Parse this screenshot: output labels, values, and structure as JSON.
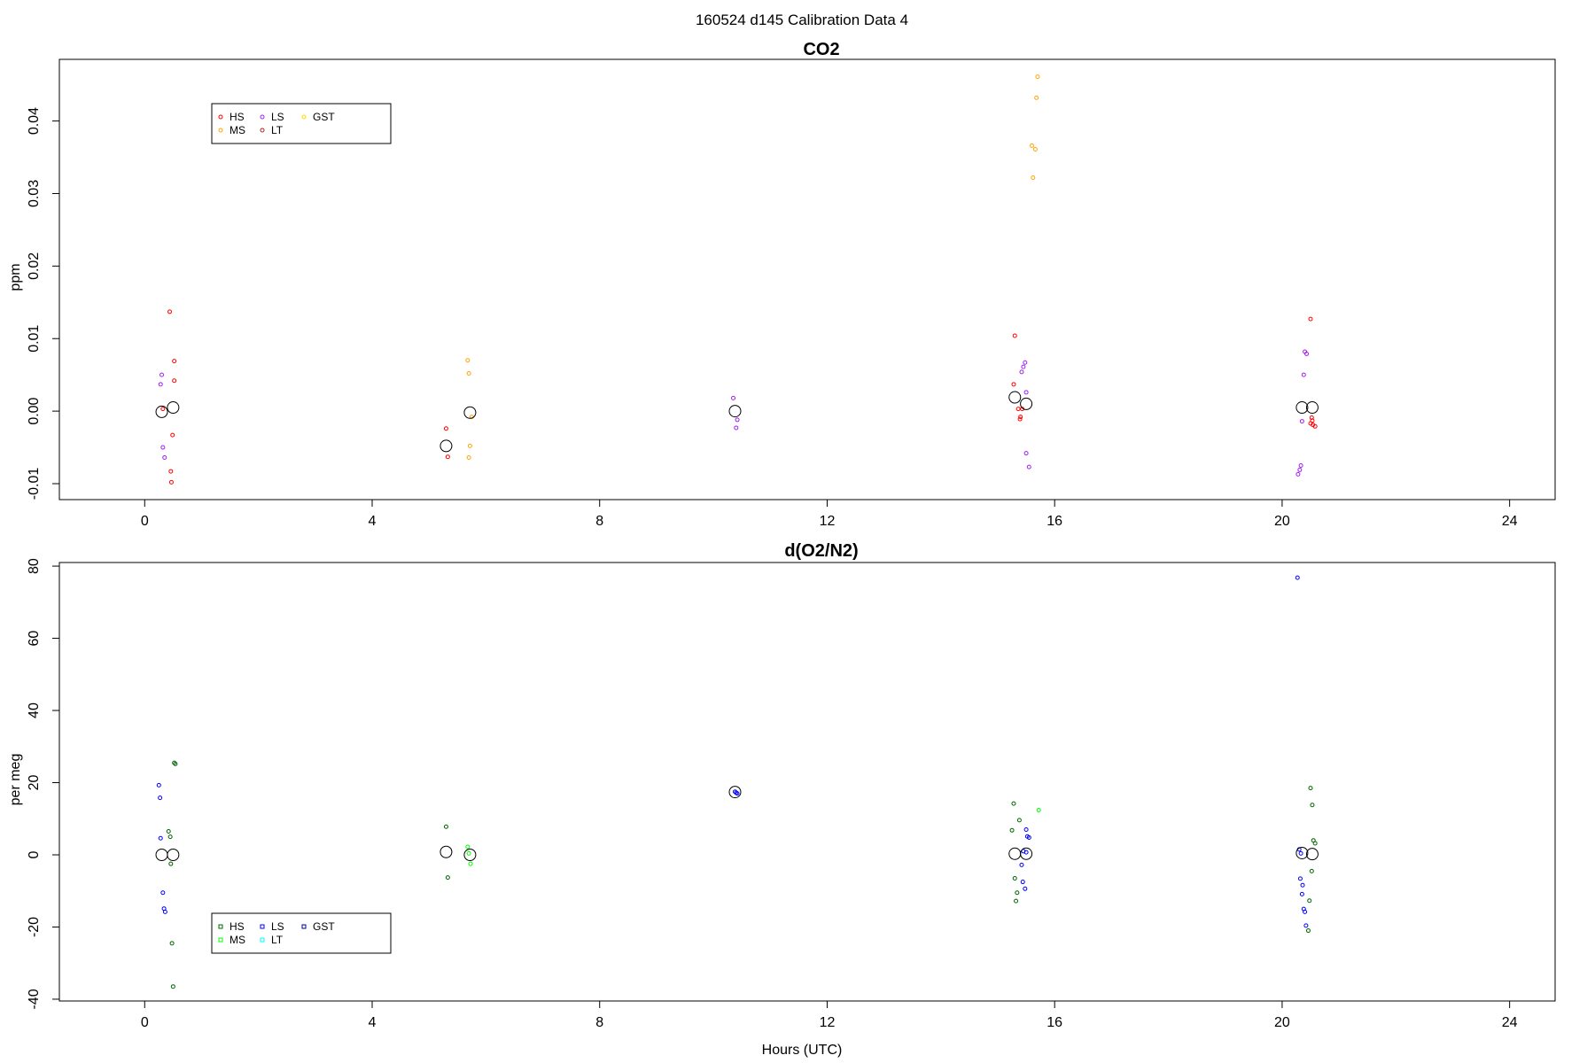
{
  "suptitle": "160524   d145   Calibration Data 4",
  "chart_data": [
    {
      "type": "scatter",
      "title": "CO2",
      "xlabel": "",
      "ylabel": "ppm",
      "xlim": [
        -1.5,
        24.8
      ],
      "ylim": [
        -0.0122,
        0.0485
      ],
      "xticks": [
        0,
        4,
        8,
        12,
        16,
        20,
        24
      ],
      "xtick_labels": [
        "0",
        "4",
        "8",
        "12",
        "16",
        "20",
        "24"
      ],
      "yticks": [
        -0.01,
        0.0,
        0.01,
        0.02,
        0.03,
        0.04
      ],
      "ytick_labels": [
        "-0.01",
        "0.00",
        "0.01",
        "0.02",
        "0.03",
        "0.04"
      ],
      "grid": false,
      "legend_position": "top-left",
      "legend": [
        {
          "label": "HS",
          "color": "#ff0000"
        },
        {
          "label": "LS",
          "color": "#a020f0"
        },
        {
          "label": "GST",
          "color": "#ffd700"
        },
        {
          "label": "MS",
          "color": "#ffa500"
        },
        {
          "label": "LT",
          "color": "#b22222"
        }
      ],
      "series": [
        {
          "name": "HS",
          "color": "#ff0000",
          "points": [
            [
              0.44,
              0.0137
            ],
            [
              0.52,
              0.0069
            ],
            [
              0.52,
              0.0042
            ],
            [
              0.49,
              -0.0033
            ],
            [
              0.46,
              -0.0083
            ],
            [
              0.47,
              -0.0098
            ],
            [
              0.32,
              0.0003
            ],
            [
              5.3,
              -0.0024
            ],
            [
              5.33,
              -0.0063
            ],
            [
              15.3,
              0.0104
            ],
            [
              15.28,
              0.0037
            ],
            [
              15.36,
              0.0003
            ],
            [
              15.4,
              -0.0008
            ],
            [
              15.39,
              -0.0011
            ],
            [
              15.43,
              0.0003
            ],
            [
              20.5,
              0.0127
            ],
            [
              20.52,
              -0.0009
            ],
            [
              20.53,
              -0.0013
            ],
            [
              20.5,
              -0.0017
            ],
            [
              20.54,
              -0.0019
            ],
            [
              20.58,
              -0.0021
            ]
          ]
        },
        {
          "name": "LS",
          "color": "#a020f0",
          "points": [
            [
              0.3,
              0.005
            ],
            [
              0.28,
              0.0037
            ],
            [
              0.32,
              -0.005
            ],
            [
              0.35,
              -0.0064
            ],
            [
              10.35,
              0.0018
            ],
            [
              10.42,
              -0.0012
            ],
            [
              10.4,
              -0.0023
            ],
            [
              15.48,
              0.0067
            ],
            [
              15.45,
              0.0061
            ],
            [
              15.42,
              0.0054
            ],
            [
              15.5,
              0.0026
            ],
            [
              15.5,
              -0.0058
            ],
            [
              15.55,
              -0.0077
            ],
            [
              20.4,
              0.0082
            ],
            [
              20.43,
              0.0079
            ],
            [
              20.38,
              0.005
            ],
            [
              20.35,
              -0.0014
            ],
            [
              20.33,
              -0.0075
            ],
            [
              20.31,
              -0.0081
            ],
            [
              20.28,
              -0.0087
            ]
          ]
        },
        {
          "name": "MS",
          "color": "#ffa500",
          "points": [
            [
              5.68,
              0.007
            ],
            [
              5.7,
              0.0052
            ],
            [
              5.75,
              -0.0008
            ],
            [
              5.72,
              -0.0048
            ],
            [
              5.7,
              -0.0064
            ],
            [
              15.7,
              0.0461
            ],
            [
              15.68,
              0.0432
            ],
            [
              15.6,
              0.0366
            ],
            [
              15.66,
              0.0361
            ],
            [
              15.62,
              0.0322
            ]
          ]
        },
        {
          "name": "calibration mean",
          "color": "#000000",
          "large": true,
          "points": [
            [
              0.3,
              -0.0001
            ],
            [
              0.5,
              0.0005
            ],
            [
              5.3,
              -0.0048
            ],
            [
              5.72,
              -0.0002
            ],
            [
              10.38,
              0.0
            ],
            [
              15.3,
              0.0019
            ],
            [
              15.5,
              0.001
            ],
            [
              20.35,
              0.0005
            ],
            [
              20.53,
              0.0005
            ]
          ]
        }
      ]
    },
    {
      "type": "scatter",
      "title": "d(O2/N2)",
      "xlabel": "Hours (UTC)",
      "ylabel": "per meg",
      "xlim": [
        -1.5,
        24.8
      ],
      "ylim": [
        -40.5,
        81
      ],
      "xticks": [
        0,
        4,
        8,
        12,
        16,
        20,
        24
      ],
      "xtick_labels": [
        "0",
        "4",
        "8",
        "12",
        "16",
        "20",
        "24"
      ],
      "yticks": [
        -40,
        -20,
        0,
        20,
        40,
        60,
        80
      ],
      "ytick_labels": [
        "-40",
        "-20",
        "0",
        "20",
        "40",
        "60",
        "80"
      ],
      "grid": false,
      "legend_position": "bottom-left",
      "legend": [
        {
          "label": "HS",
          "color": "#006400"
        },
        {
          "label": "LS",
          "color": "#0000ff"
        },
        {
          "label": "GST",
          "color": "#00008b"
        },
        {
          "label": "MS",
          "color": "#00ff00"
        },
        {
          "label": "LT",
          "color": "#00ffff"
        }
      ],
      "series": [
        {
          "name": "HS",
          "color": "#006400",
          "points": [
            [
              0.52,
              25.5
            ],
            [
              0.54,
              25.2
            ],
            [
              0.42,
              6.5
            ],
            [
              0.45,
              5.0
            ],
            [
              0.46,
              -2.5
            ],
            [
              0.48,
              -24.5
            ],
            [
              0.5,
              -36.5
            ],
            [
              5.3,
              7.8
            ],
            [
              5.33,
              -6.3
            ],
            [
              15.28,
              14.2
            ],
            [
              15.38,
              9.6
            ],
            [
              15.25,
              6.8
            ],
            [
              15.3,
              -6.5
            ],
            [
              15.34,
              -10.5
            ],
            [
              15.32,
              -12.8
            ],
            [
              20.5,
              18.5
            ],
            [
              20.53,
              13.8
            ],
            [
              20.55,
              4.0
            ],
            [
              20.58,
              3.2
            ],
            [
              20.52,
              -4.5
            ],
            [
              20.48,
              -12.7
            ],
            [
              20.46,
              -21.0
            ]
          ]
        },
        {
          "name": "LS",
          "color": "#0000ff",
          "points": [
            [
              0.25,
              19.3
            ],
            [
              0.27,
              15.8
            ],
            [
              0.28,
              4.6
            ],
            [
              0.32,
              -10.5
            ],
            [
              0.34,
              -14.9
            ],
            [
              0.36,
              -15.8
            ],
            [
              10.38,
              17.5
            ],
            [
              10.4,
              17.2
            ],
            [
              10.42,
              17.0
            ],
            [
              15.5,
              7.0
            ],
            [
              15.52,
              5.1
            ],
            [
              15.55,
              4.8
            ],
            [
              15.45,
              1.0
            ],
            [
              15.5,
              0.7
            ],
            [
              15.42,
              -2.8
            ],
            [
              15.44,
              -7.5
            ],
            [
              15.48,
              -9.4
            ],
            [
              20.27,
              76.8
            ],
            [
              20.3,
              1.5
            ],
            [
              20.33,
              0.4
            ],
            [
              20.32,
              -6.6
            ],
            [
              20.36,
              -8.4
            ],
            [
              20.35,
              -10.9
            ],
            [
              20.38,
              -15.0
            ],
            [
              20.4,
              -15.8
            ],
            [
              20.42,
              -19.6
            ]
          ]
        },
        {
          "name": "MS",
          "color": "#00ff00",
          "points": [
            [
              5.68,
              2.2
            ],
            [
              5.7,
              0.4
            ],
            [
              5.73,
              -2.5
            ],
            [
              15.72,
              12.4
            ]
          ]
        },
        {
          "name": "calibration mean",
          "color": "#000000",
          "large": true,
          "points": [
            [
              0.3,
              0.0
            ],
            [
              0.5,
              0.0
            ],
            [
              5.3,
              0.8
            ],
            [
              5.72,
              0.0
            ],
            [
              10.38,
              17.4
            ],
            [
              15.3,
              0.3
            ],
            [
              15.5,
              0.3
            ],
            [
              20.35,
              0.5
            ],
            [
              20.53,
              0.2
            ]
          ]
        }
      ]
    }
  ]
}
